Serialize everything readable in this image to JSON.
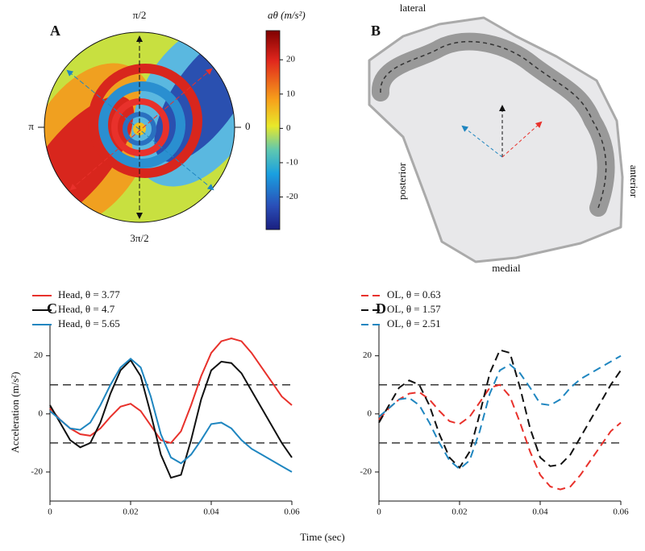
{
  "panel_a": {
    "label": "A",
    "angle_labels": [
      "π/2",
      "π",
      "0",
      "3π/2"
    ],
    "colorbar": {
      "label": "aθ (m/s²)",
      "lim": [
        -29.5,
        28.5
      ],
      "ticks": [
        20,
        10,
        0,
        -10,
        -20
      ]
    }
  },
  "panel_b": {
    "label": "B",
    "labels": [
      "lateral",
      "anterior",
      "medial",
      "posterior"
    ]
  },
  "x_label": "Time (sec)",
  "chart_data": [
    {
      "type": "line",
      "panel": "C",
      "ylabel": "Acceleration (m/s²)",
      "dashed": false,
      "x": [
        0,
        0.0025,
        0.005,
        0.0075,
        0.01,
        0.0125,
        0.015,
        0.0175,
        0.02,
        0.0225,
        0.025,
        0.0275,
        0.03,
        0.0325,
        0.035,
        0.0375,
        0.04,
        0.0425,
        0.045,
        0.0475,
        0.05,
        0.0525,
        0.055,
        0.0575,
        0.06
      ],
      "xlim": [
        0,
        0.06
      ],
      "xticks": [
        0,
        0.02,
        0.04,
        0.06
      ],
      "ylim": [
        -30,
        31
      ],
      "yticks": [
        -20,
        0,
        20
      ],
      "hlines": [
        10,
        -10
      ],
      "series": [
        {
          "name": "Head, θ = 3.77",
          "color": "#e8312b",
          "values": [
            2,
            -2,
            -5,
            -7,
            -7.5,
            -5,
            -1,
            2.5,
            3.5,
            1,
            -4,
            -9,
            -10,
            -6,
            3,
            13,
            21,
            25,
            26,
            25,
            21,
            16,
            11,
            6,
            3
          ]
        },
        {
          "name": "Head, θ = 4.7",
          "color": "#111111",
          "values": [
            3,
            -3,
            -9,
            -11.5,
            -10,
            -3,
            7,
            15,
            18.5,
            13,
            0,
            -14,
            -22,
            -21,
            -9,
            5,
            15,
            18,
            17.5,
            14,
            8,
            2,
            -4,
            -10,
            -15
          ]
        },
        {
          "name": "Head, θ = 5.65",
          "color": "#1f86c0",
          "values": [
            1,
            -2,
            -5,
            -5.5,
            -3,
            3,
            10,
            16,
            19,
            16,
            6,
            -7,
            -15,
            -17,
            -14,
            -9,
            -3.5,
            -3,
            -5,
            -9,
            -12,
            -14,
            -16,
            -18,
            -20
          ]
        }
      ]
    },
    {
      "type": "line",
      "panel": "D",
      "dashed": true,
      "x": [
        0,
        0.0025,
        0.005,
        0.0075,
        0.01,
        0.0125,
        0.015,
        0.0175,
        0.02,
        0.0225,
        0.025,
        0.0275,
        0.03,
        0.0325,
        0.035,
        0.0375,
        0.04,
        0.0425,
        0.045,
        0.0475,
        0.05,
        0.0525,
        0.055,
        0.0575,
        0.06
      ],
      "xlim": [
        0,
        0.06
      ],
      "xticks": [
        0,
        0.02,
        0.04,
        0.06
      ],
      "ylim": [
        -30,
        31
      ],
      "yticks": [
        -20,
        0,
        20
      ],
      "hlines": [
        10,
        -10
      ],
      "series": [
        {
          "name": "OL, θ = 0.63",
          "color": "#e8312b",
          "values": [
            -2,
            2,
            5,
            7,
            7.5,
            5,
            1,
            -2.5,
            -3.5,
            -1,
            4,
            9,
            10,
            6,
            -3,
            -13,
            -21,
            -25,
            -26,
            -25,
            -21,
            -16,
            -11,
            -6,
            -3
          ]
        },
        {
          "name": "OL, θ = 1.57",
          "color": "#111111",
          "values": [
            -3,
            3,
            9,
            11.5,
            10,
            3,
            -7,
            -15,
            -18.5,
            -13,
            0,
            14,
            22,
            21,
            9,
            -5,
            -15,
            -18,
            -17.5,
            -14,
            -8,
            -2,
            4,
            10,
            15
          ]
        },
        {
          "name": "OL, θ = 2.51",
          "color": "#1f86c0",
          "values": [
            -1,
            2,
            5,
            5.5,
            3,
            -3,
            -10,
            -16,
            -19,
            -16,
            -6,
            7,
            15,
            17,
            14,
            9,
            3.5,
            3,
            5,
            9,
            12,
            14,
            16,
            18,
            20
          ]
        }
      ]
    }
  ]
}
